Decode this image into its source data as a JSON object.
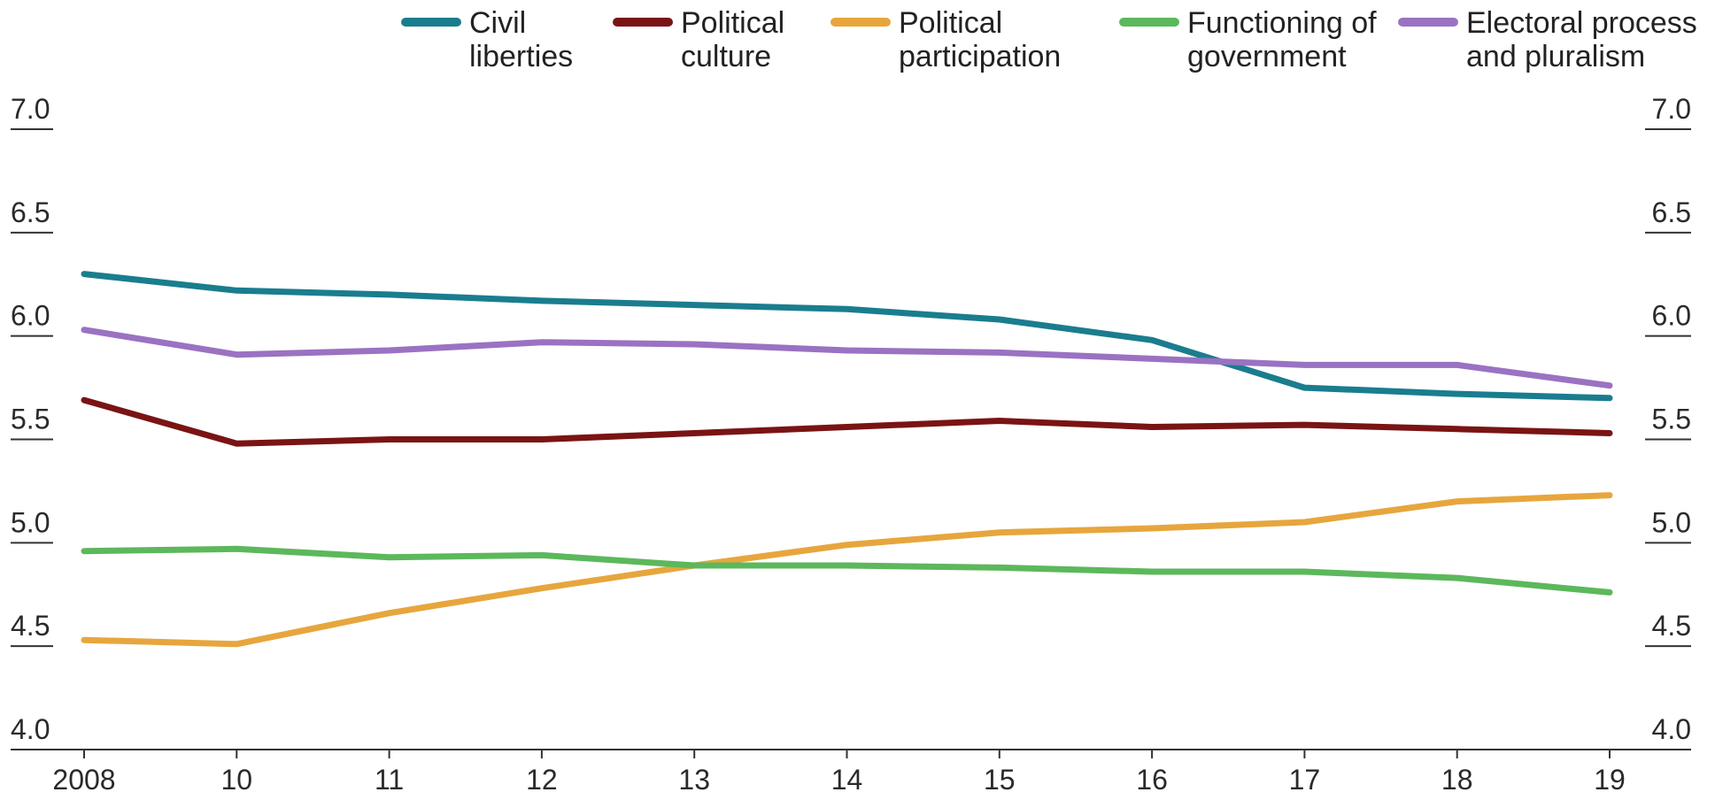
{
  "chart_data": {
    "type": "line",
    "x": [
      "2008",
      "10",
      "11",
      "12",
      "13",
      "14",
      "15",
      "16",
      "17",
      "18",
      "19"
    ],
    "ylim": [
      4.0,
      7.0
    ],
    "yticks": [
      "4.0",
      "4.5",
      "5.0",
      "5.5",
      "6.0",
      "6.5",
      "7.0"
    ],
    "dual_y_axis": true,
    "grid": false,
    "legend_position": "top",
    "series": [
      {
        "name": "Civil\nliberties",
        "color": "#1a7d8e",
        "values": [
          6.3,
          6.22,
          6.2,
          6.17,
          6.15,
          6.13,
          6.08,
          5.98,
          5.75,
          5.72,
          5.7
        ]
      },
      {
        "name": "Political\nculture",
        "color": "#7a1414",
        "values": [
          5.69,
          5.48,
          5.5,
          5.5,
          5.53,
          5.56,
          5.59,
          5.56,
          5.57,
          5.55,
          5.53
        ]
      },
      {
        "name": "Political\nparticipation",
        "color": "#e7a63d",
        "values": [
          4.53,
          4.51,
          4.66,
          4.78,
          4.89,
          4.99,
          5.05,
          5.07,
          5.1,
          5.2,
          5.23
        ]
      },
      {
        "name": "Functioning of\ngovernment",
        "color": "#5cb85c",
        "values": [
          4.96,
          4.97,
          4.93,
          4.94,
          4.89,
          4.89,
          4.88,
          4.86,
          4.86,
          4.83,
          4.76
        ]
      },
      {
        "name": "Electoral process\nand pluralism",
        "color": "#9a72c2",
        "values": [
          6.03,
          5.91,
          5.93,
          5.97,
          5.96,
          5.93,
          5.92,
          5.89,
          5.86,
          5.86,
          5.76
        ]
      }
    ]
  }
}
